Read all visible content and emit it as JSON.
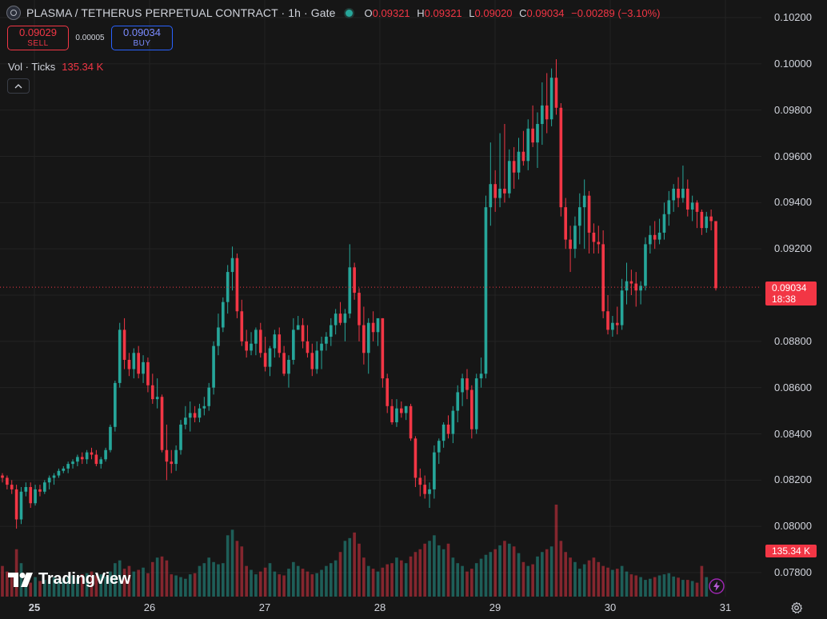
{
  "header": {
    "title": "PLASMA / TETHERUS PERPETUAL CONTRACT · 1h · Gate",
    "ohlc": {
      "o_label": "O",
      "o": "0.09321",
      "h_label": "H",
      "h": "0.09321",
      "l_label": "L",
      "l": "0.09020",
      "c_label": "C",
      "c": "0.09034",
      "change": "−0.00289 (−3.10%)"
    }
  },
  "trade": {
    "sell_price": "0.09029",
    "sell_label": "SELL",
    "spread": "0.00005",
    "buy_price": "0.09034",
    "buy_label": "BUY"
  },
  "volume_legend": {
    "label": "Vol · Ticks",
    "value": "135.34 K"
  },
  "branding": {
    "logo_text": "TradingView"
  },
  "price_tag": {
    "price": "0.09034",
    "countdown": "18:38"
  },
  "volume_tag": "135.34 K",
  "colors": {
    "up": "#26a69a",
    "down": "#f23645",
    "background": "#161616",
    "grid": "#232323"
  },
  "icons": [
    "symbol-icon",
    "collapse-chevron-icon",
    "tradingview-logo-icon",
    "lightning-icon",
    "settings-gear-icon"
  ],
  "chart_data": {
    "type": "candlestick",
    "interval": "1h",
    "y_axis": {
      "ticks": [
        "0.07800",
        "0.08000",
        "0.08200",
        "0.08400",
        "0.08600",
        "0.08800",
        "0.09000",
        "0.09200",
        "0.09400",
        "0.09600",
        "0.09800",
        "0.10000",
        "0.10200"
      ],
      "ylim": [
        0.0772,
        0.1026
      ]
    },
    "x_axis": {
      "ticks": [
        "25",
        "26",
        "27",
        "28",
        "29",
        "30",
        "31"
      ]
    },
    "last_price": 0.09034,
    "candles": [
      [
        0.0822,
        0.0823,
        0.0819,
        0.0821
      ],
      [
        0.0821,
        0.0822,
        0.0816,
        0.0818
      ],
      [
        0.0818,
        0.082,
        0.0814,
        0.0816
      ],
      [
        0.0816,
        0.0818,
        0.0799,
        0.0803
      ],
      [
        0.0803,
        0.0817,
        0.0801,
        0.0815
      ],
      [
        0.0815,
        0.0819,
        0.0813,
        0.0817
      ],
      [
        0.0817,
        0.0819,
        0.0808,
        0.081
      ],
      [
        0.081,
        0.0818,
        0.0809,
        0.0816
      ],
      [
        0.0816,
        0.0818,
        0.0813,
        0.0815
      ],
      [
        0.0815,
        0.082,
        0.0814,
        0.0819
      ],
      [
        0.0819,
        0.0822,
        0.0816,
        0.0821
      ],
      [
        0.0821,
        0.0823,
        0.0818,
        0.0822
      ],
      [
        0.0822,
        0.0825,
        0.0821,
        0.0824
      ],
      [
        0.0824,
        0.0826,
        0.0823,
        0.0825
      ],
      [
        0.0825,
        0.0828,
        0.0823,
        0.0827
      ],
      [
        0.0827,
        0.0829,
        0.0825,
        0.0828
      ],
      [
        0.0828,
        0.0831,
        0.0826,
        0.083
      ],
      [
        0.083,
        0.0832,
        0.0827,
        0.0829
      ],
      [
        0.0829,
        0.0833,
        0.0827,
        0.0832
      ],
      [
        0.0832,
        0.0834,
        0.0829,
        0.0831
      ],
      [
        0.0831,
        0.0833,
        0.0826,
        0.0827
      ],
      [
        0.0827,
        0.083,
        0.0825,
        0.0829
      ],
      [
        0.0829,
        0.0834,
        0.0828,
        0.0833
      ],
      [
        0.0833,
        0.0844,
        0.0832,
        0.0843
      ],
      [
        0.0843,
        0.0863,
        0.0841,
        0.0862
      ],
      [
        0.0862,
        0.0888,
        0.086,
        0.0885
      ],
      [
        0.0885,
        0.089,
        0.0868,
        0.0872
      ],
      [
        0.0872,
        0.0875,
        0.0865,
        0.0868
      ],
      [
        0.0868,
        0.0877,
        0.0864,
        0.0875
      ],
      [
        0.0875,
        0.0878,
        0.0864,
        0.0866
      ],
      [
        0.0866,
        0.0874,
        0.0862,
        0.0871
      ],
      [
        0.0871,
        0.0873,
        0.0858,
        0.0861
      ],
      [
        0.0861,
        0.0866,
        0.0853,
        0.0855
      ],
      [
        0.0855,
        0.0864,
        0.0851,
        0.0856
      ],
      [
        0.0856,
        0.0857,
        0.0832,
        0.0833
      ],
      [
        0.0833,
        0.0844,
        0.082,
        0.0828
      ],
      [
        0.0828,
        0.0833,
        0.0823,
        0.0827
      ],
      [
        0.0827,
        0.0835,
        0.0824,
        0.0833
      ],
      [
        0.0833,
        0.0846,
        0.0831,
        0.0844
      ],
      [
        0.0844,
        0.0852,
        0.0842,
        0.0847
      ],
      [
        0.0847,
        0.0854,
        0.0841,
        0.0849
      ],
      [
        0.0849,
        0.0852,
        0.0845,
        0.0847
      ],
      [
        0.0847,
        0.0853,
        0.0845,
        0.0851
      ],
      [
        0.0851,
        0.0856,
        0.0848,
        0.0852
      ],
      [
        0.0852,
        0.0862,
        0.085,
        0.086
      ],
      [
        0.086,
        0.088,
        0.0857,
        0.0878
      ],
      [
        0.0878,
        0.0892,
        0.0874,
        0.0886
      ],
      [
        0.0886,
        0.0899,
        0.0884,
        0.0897
      ],
      [
        0.0897,
        0.0913,
        0.0892,
        0.091
      ],
      [
        0.091,
        0.0921,
        0.0902,
        0.0916
      ],
      [
        0.0916,
        0.0918,
        0.089,
        0.0893
      ],
      [
        0.0893,
        0.0898,
        0.0878,
        0.088
      ],
      [
        0.088,
        0.0885,
        0.0873,
        0.0876
      ],
      [
        0.0876,
        0.0884,
        0.0874,
        0.0879
      ],
      [
        0.0879,
        0.0886,
        0.0874,
        0.0885
      ],
      [
        0.0885,
        0.0888,
        0.0873,
        0.0875
      ],
      [
        0.0875,
        0.0882,
        0.0867,
        0.0869
      ],
      [
        0.0869,
        0.0878,
        0.0865,
        0.0877
      ],
      [
        0.0877,
        0.0885,
        0.0873,
        0.0883
      ],
      [
        0.0883,
        0.0886,
        0.0873,
        0.0875
      ],
      [
        0.0875,
        0.0878,
        0.0865,
        0.0866
      ],
      [
        0.0866,
        0.0874,
        0.086,
        0.0872
      ],
      [
        0.0872,
        0.089,
        0.087,
        0.0885
      ],
      [
        0.0885,
        0.0891,
        0.0885,
        0.0887
      ],
      [
        0.0887,
        0.089,
        0.0877,
        0.088
      ],
      [
        0.088,
        0.0887,
        0.0873,
        0.0875
      ],
      [
        0.0875,
        0.0879,
        0.0865,
        0.0868
      ],
      [
        0.0868,
        0.088,
        0.0866,
        0.0876
      ],
      [
        0.0876,
        0.0882,
        0.0868,
        0.0879
      ],
      [
        0.0879,
        0.0884,
        0.0876,
        0.0882
      ],
      [
        0.0882,
        0.089,
        0.0878,
        0.0887
      ],
      [
        0.0887,
        0.0894,
        0.0883,
        0.0892
      ],
      [
        0.0892,
        0.0897,
        0.0887,
        0.0888
      ],
      [
        0.0888,
        0.0894,
        0.088,
        0.0892
      ],
      [
        0.0892,
        0.0922,
        0.089,
        0.0912
      ],
      [
        0.0912,
        0.0914,
        0.0898,
        0.0901
      ],
      [
        0.0901,
        0.0903,
        0.088,
        0.0887
      ],
      [
        0.0887,
        0.0895,
        0.087,
        0.0875
      ],
      [
        0.0875,
        0.089,
        0.0866,
        0.0888
      ],
      [
        0.0888,
        0.0893,
        0.088,
        0.0884
      ],
      [
        0.0884,
        0.0889,
        0.0878,
        0.089
      ],
      [
        0.089,
        0.089,
        0.086,
        0.0864
      ],
      [
        0.0864,
        0.0866,
        0.0849,
        0.0852
      ],
      [
        0.0852,
        0.0855,
        0.0844,
        0.0845
      ],
      [
        0.0845,
        0.0855,
        0.0843,
        0.0851
      ],
      [
        0.0851,
        0.0854,
        0.0847,
        0.0849
      ],
      [
        0.0849,
        0.0852,
        0.0846,
        0.0852
      ],
      [
        0.0852,
        0.0853,
        0.0837,
        0.0838
      ],
      [
        0.0838,
        0.0839,
        0.0817,
        0.0821
      ],
      [
        0.0821,
        0.0825,
        0.0813,
        0.0818
      ],
      [
        0.0818,
        0.0822,
        0.0812,
        0.0814
      ],
      [
        0.0814,
        0.0819,
        0.0808,
        0.0816
      ],
      [
        0.0816,
        0.0835,
        0.0812,
        0.0832
      ],
      [
        0.0832,
        0.0838,
        0.0827,
        0.0837
      ],
      [
        0.0837,
        0.0845,
        0.0834,
        0.0844
      ],
      [
        0.0844,
        0.0848,
        0.0838,
        0.084
      ],
      [
        0.084,
        0.0852,
        0.0836,
        0.085
      ],
      [
        0.085,
        0.0861,
        0.0845,
        0.0858
      ],
      [
        0.0858,
        0.0866,
        0.0852,
        0.0864
      ],
      [
        0.0864,
        0.0868,
        0.0855,
        0.0859
      ],
      [
        0.0859,
        0.0861,
        0.0838,
        0.0842
      ],
      [
        0.0842,
        0.0866,
        0.084,
        0.0864
      ],
      [
        0.0864,
        0.0873,
        0.086,
        0.0866
      ],
      [
        0.0866,
        0.0943,
        0.0864,
        0.0938
      ],
      [
        0.0938,
        0.0966,
        0.093,
        0.0948
      ],
      [
        0.0948,
        0.0954,
        0.0936,
        0.0942
      ],
      [
        0.0942,
        0.097,
        0.0938,
        0.0946
      ],
      [
        0.0946,
        0.0974,
        0.094,
        0.0944
      ],
      [
        0.0944,
        0.0963,
        0.0942,
        0.0958
      ],
      [
        0.0958,
        0.0964,
        0.0946,
        0.0953
      ],
      [
        0.0953,
        0.0968,
        0.095,
        0.0962
      ],
      [
        0.0962,
        0.0971,
        0.0956,
        0.0958
      ],
      [
        0.0958,
        0.0976,
        0.0954,
        0.0972
      ],
      [
        0.0972,
        0.0982,
        0.0964,
        0.0966
      ],
      [
        0.0966,
        0.0979,
        0.0955,
        0.0974
      ],
      [
        0.0974,
        0.0992,
        0.0965,
        0.0982
      ],
      [
        0.0982,
        0.0996,
        0.097,
        0.0976
      ],
      [
        0.0976,
        0.0998,
        0.0973,
        0.0994
      ],
      [
        0.0994,
        0.1002,
        0.0978,
        0.0981
      ],
      [
        0.0981,
        0.0983,
        0.0934,
        0.0938
      ],
      [
        0.0938,
        0.0942,
        0.092,
        0.0924
      ],
      [
        0.0924,
        0.093,
        0.091,
        0.092
      ],
      [
        0.092,
        0.0934,
        0.0916,
        0.093
      ],
      [
        0.093,
        0.0944,
        0.0922,
        0.0938
      ],
      [
        0.0938,
        0.095,
        0.092,
        0.0943
      ],
      [
        0.0943,
        0.0945,
        0.0918,
        0.0927
      ],
      [
        0.0927,
        0.0931,
        0.0918,
        0.0923
      ],
      [
        0.0923,
        0.093,
        0.0918,
        0.0922
      ],
      [
        0.0922,
        0.0928,
        0.089,
        0.0893
      ],
      [
        0.0893,
        0.09,
        0.0883,
        0.0885
      ],
      [
        0.0885,
        0.0891,
        0.0882,
        0.0888
      ],
      [
        0.0888,
        0.0895,
        0.0883,
        0.0887
      ],
      [
        0.0887,
        0.0907,
        0.0885,
        0.0902
      ],
      [
        0.0902,
        0.0914,
        0.0896,
        0.0906
      ],
      [
        0.0906,
        0.0911,
        0.09,
        0.0905
      ],
      [
        0.0905,
        0.091,
        0.0895,
        0.0902
      ],
      [
        0.0902,
        0.0906,
        0.0896,
        0.0904
      ],
      [
        0.0904,
        0.0925,
        0.0902,
        0.0922
      ],
      [
        0.0922,
        0.093,
        0.0918,
        0.0926
      ],
      [
        0.0926,
        0.0932,
        0.092,
        0.0924
      ],
      [
        0.0924,
        0.0933,
        0.0922,
        0.0927
      ],
      [
        0.0927,
        0.094,
        0.0924,
        0.0935
      ],
      [
        0.0935,
        0.0945,
        0.093,
        0.0941
      ],
      [
        0.0941,
        0.0948,
        0.0936,
        0.0946
      ],
      [
        0.0946,
        0.0951,
        0.0938,
        0.0942
      ],
      [
        0.0942,
        0.0956,
        0.094,
        0.0946
      ],
      [
        0.0946,
        0.095,
        0.0934,
        0.0937
      ],
      [
        0.0937,
        0.0943,
        0.0932,
        0.094
      ],
      [
        0.094,
        0.0941,
        0.0929,
        0.0936
      ],
      [
        0.0936,
        0.0937,
        0.0926,
        0.0929
      ],
      [
        0.0929,
        0.0936,
        0.0927,
        0.0934
      ],
      [
        0.0934,
        0.0937,
        0.0928,
        0.0932
      ],
      [
        0.0932,
        0.0932,
        0.0902,
        0.0903
      ]
    ],
    "volumes": [
      0.55,
      0.45,
      0.4,
      0.85,
      0.6,
      0.3,
      0.25,
      0.35,
      0.28,
      0.3,
      0.32,
      0.35,
      0.3,
      0.33,
      0.36,
      0.38,
      0.35,
      0.4,
      0.42,
      0.45,
      0.38,
      0.4,
      0.36,
      0.45,
      0.6,
      0.65,
      0.5,
      0.55,
      0.45,
      0.48,
      0.52,
      0.42,
      0.62,
      0.7,
      0.72,
      0.65,
      0.4,
      0.38,
      0.35,
      0.32,
      0.4,
      0.42,
      0.55,
      0.6,
      0.7,
      0.62,
      0.58,
      0.6,
      1.1,
      1.2,
      1.0,
      0.9,
      0.55,
      0.48,
      0.4,
      0.45,
      0.52,
      0.6,
      0.45,
      0.4,
      0.38,
      0.5,
      0.62,
      0.55,
      0.5,
      0.45,
      0.4,
      0.42,
      0.48,
      0.55,
      0.6,
      0.65,
      0.8,
      1.0,
      1.05,
      1.15,
      0.95,
      0.7,
      0.55,
      0.5,
      0.45,
      0.52,
      0.58,
      0.6,
      0.7,
      0.65,
      0.6,
      0.72,
      0.8,
      0.85,
      0.95,
      1.0,
      1.1,
      0.92,
      0.85,
      0.95,
      0.7,
      0.6,
      0.55,
      0.45,
      0.5,
      0.6,
      0.68,
      0.75,
      0.8,
      0.85,
      0.92,
      1.0,
      0.95,
      0.9,
      0.78,
      0.62,
      0.55,
      0.58,
      0.72,
      0.8,
      0.85,
      0.9,
      1.65,
      1.0,
      0.8,
      0.7,
      0.62,
      0.5,
      0.58,
      0.65,
      0.7,
      0.62,
      0.55,
      0.52,
      0.48,
      0.5,
      0.55,
      0.45,
      0.4,
      0.38,
      0.35,
      0.3,
      0.32,
      0.35,
      0.38,
      0.4,
      0.42,
      0.36,
      0.34,
      0.3,
      0.3,
      0.28,
      0.25,
      0.55,
      0.35
    ]
  }
}
